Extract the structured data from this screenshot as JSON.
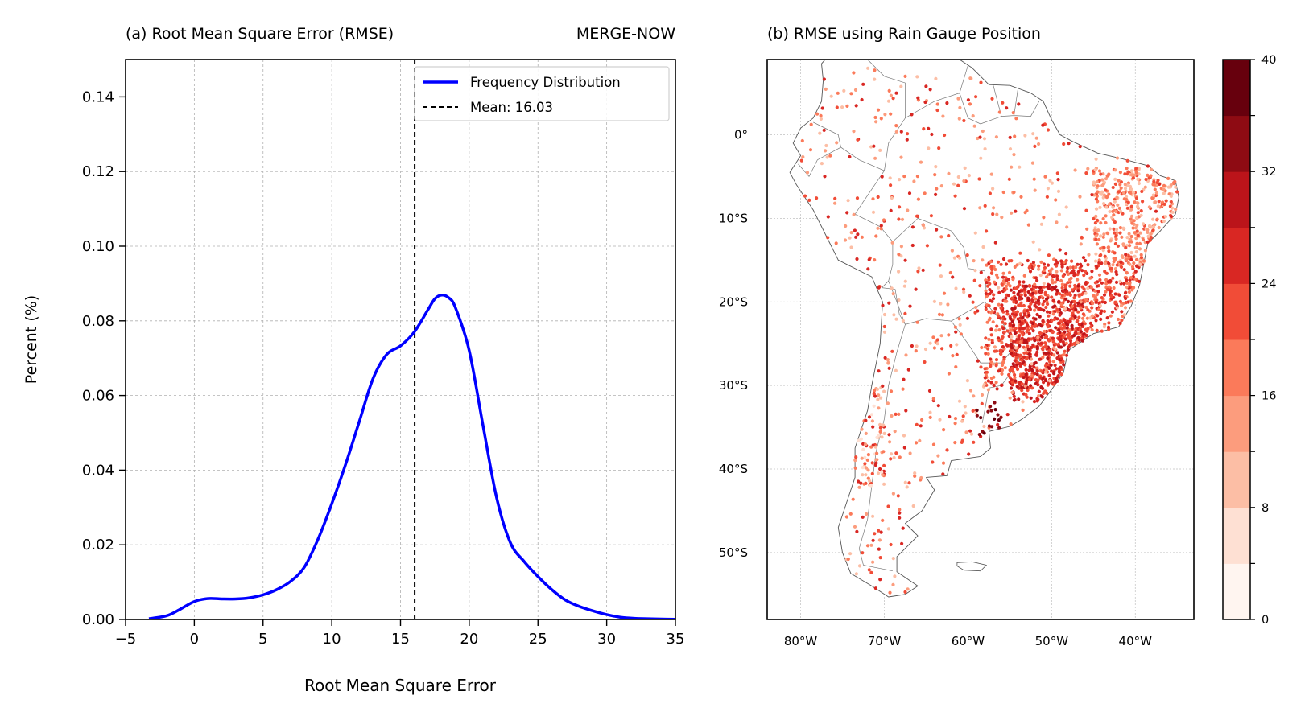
{
  "panel_a": {
    "title": "(a) Root Mean Square Error (RMSE)",
    "product": "MERGE-NOW",
    "chart_data": {
      "type": "line",
      "title": "(a) Root Mean Square Error (RMSE)",
      "xlabel": "Root Mean Square Error",
      "ylabel": "Percent (%)",
      "xlim": [
        -5,
        35
      ],
      "ylim": [
        0,
        0.15
      ],
      "x_ticks": [
        -5,
        0,
        5,
        10,
        15,
        20,
        25,
        30,
        35
      ],
      "x_tick_labels": [
        "−5",
        "0",
        "5",
        "10",
        "15",
        "20",
        "25",
        "30",
        "35"
      ],
      "y_ticks": [
        0,
        0.02,
        0.04,
        0.06,
        0.08,
        0.1,
        0.12,
        0.14
      ],
      "y_tick_labels": [
        "0.00",
        "0.02",
        "0.04",
        "0.06",
        "0.08",
        "0.10",
        "0.12",
        "0.14"
      ],
      "grid": true,
      "legend_position": "top-right",
      "series": [
        {
          "name": "Frequency Distribution",
          "color": "#0000ff",
          "x": [
            -3.3,
            -2,
            -1,
            0,
            1,
            2,
            3,
            4,
            5,
            6,
            7,
            8,
            9,
            10,
            11,
            12,
            13,
            14,
            15,
            16,
            17,
            17.5,
            18,
            18.5,
            19,
            20,
            21,
            22,
            23,
            24,
            25,
            26,
            27,
            28,
            29,
            30,
            31,
            32,
            33,
            34,
            35
          ],
          "y": [
            0.0002,
            0.001,
            0.0028,
            0.0048,
            0.0056,
            0.0055,
            0.0055,
            0.0058,
            0.0066,
            0.008,
            0.0102,
            0.014,
            0.0215,
            0.031,
            0.0415,
            0.053,
            0.0645,
            0.071,
            0.0733,
            0.077,
            0.083,
            0.0859,
            0.0869,
            0.0862,
            0.0835,
            0.072,
            0.052,
            0.0325,
            0.0205,
            0.0155,
            0.0115,
            0.008,
            0.0052,
            0.0035,
            0.0023,
            0.0013,
            0.0006,
            0.0003,
            0.0002,
            0.0001,
            5e-05
          ]
        }
      ],
      "mean": {
        "name": "Mean: 16.03",
        "value": 16.03,
        "color": "#000000"
      }
    }
  },
  "panel_b": {
    "title": "(b) RMSE using Rain Gauge Position",
    "chart_data": {
      "type": "scatter",
      "title": "(b) RMSE using Rain Gauge Position",
      "lon_range": [
        -84,
        -33
      ],
      "lat_range": [
        -58,
        9
      ],
      "lon_ticks": [
        -80,
        -70,
        -60,
        -50,
        -40
      ],
      "lon_tick_labels": [
        "80°W",
        "70°W",
        "60°W",
        "50°W",
        "40°W"
      ],
      "lat_ticks": [
        0,
        -10,
        -20,
        -30,
        -40,
        -50
      ],
      "lat_tick_labels": [
        "0°",
        "10°S",
        "20°S",
        "30°S",
        "40°S",
        "50°S"
      ],
      "grid": true,
      "colorbar": {
        "range": [
          0,
          40
        ],
        "ticks": [
          0,
          8,
          16,
          24,
          32,
          40
        ],
        "tick_labels": [
          "0",
          "8",
          "16",
          "24",
          "32",
          "40"
        ],
        "colors": [
          "#fff5f0",
          "#fee0d3",
          "#fcbea5",
          "#fc9c7d",
          "#fb7a5a",
          "#f14c37",
          "#d92723",
          "#bb141a",
          "#8e0b13",
          "#67000d"
        ]
      }
    }
  }
}
